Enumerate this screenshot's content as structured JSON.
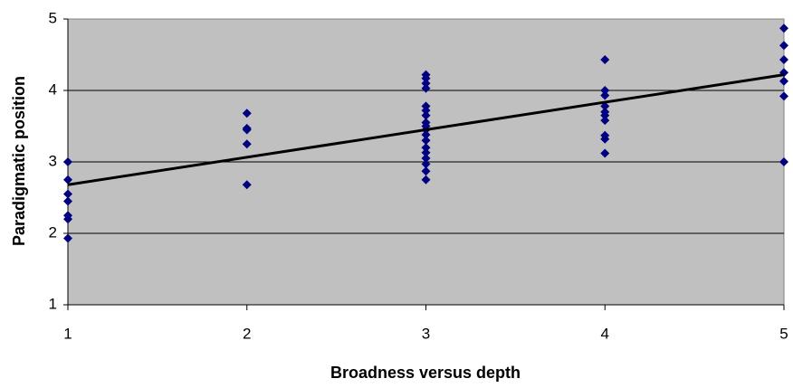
{
  "chart_data": {
    "type": "scatter",
    "x_label": "Broadness versus depth",
    "y_label": "Paradigmatic position",
    "x": [
      1,
      1,
      1,
      1,
      1,
      1,
      1,
      2,
      2,
      2,
      2,
      2,
      3,
      3,
      3,
      3,
      3,
      3,
      3,
      3,
      3,
      3,
      3,
      3,
      3,
      3,
      3,
      3,
      3,
      3,
      4,
      4,
      4,
      4,
      4,
      4,
      4,
      4,
      4,
      4,
      5,
      5,
      5,
      5,
      5,
      5,
      5
    ],
    "values": [
      3.0,
      2.75,
      2.55,
      2.45,
      2.25,
      2.2,
      1.93,
      3.68,
      3.47,
      3.45,
      3.25,
      2.68,
      4.22,
      4.17,
      4.1,
      4.03,
      3.78,
      3.72,
      3.65,
      3.55,
      3.5,
      3.45,
      3.38,
      3.3,
      3.2,
      3.13,
      3.05,
      2.97,
      2.87,
      2.75,
      4.43,
      4.0,
      3.93,
      3.78,
      3.7,
      3.65,
      3.58,
      3.37,
      3.32,
      3.12,
      4.87,
      4.63,
      4.43,
      4.25,
      4.13,
      3.92,
      3.0
    ],
    "color": "#000080",
    "trendline": {
      "x": [
        1,
        5
      ],
      "values": [
        2.68,
        4.22
      ],
      "color": "#000000"
    },
    "xlim": [
      1,
      5
    ],
    "xticks": [
      1,
      2,
      3,
      4,
      5
    ],
    "ylim": [
      1,
      5
    ],
    "yticks": [
      1,
      2,
      3,
      4,
      5
    ],
    "grid": true,
    "background": "#c0c0c0"
  }
}
